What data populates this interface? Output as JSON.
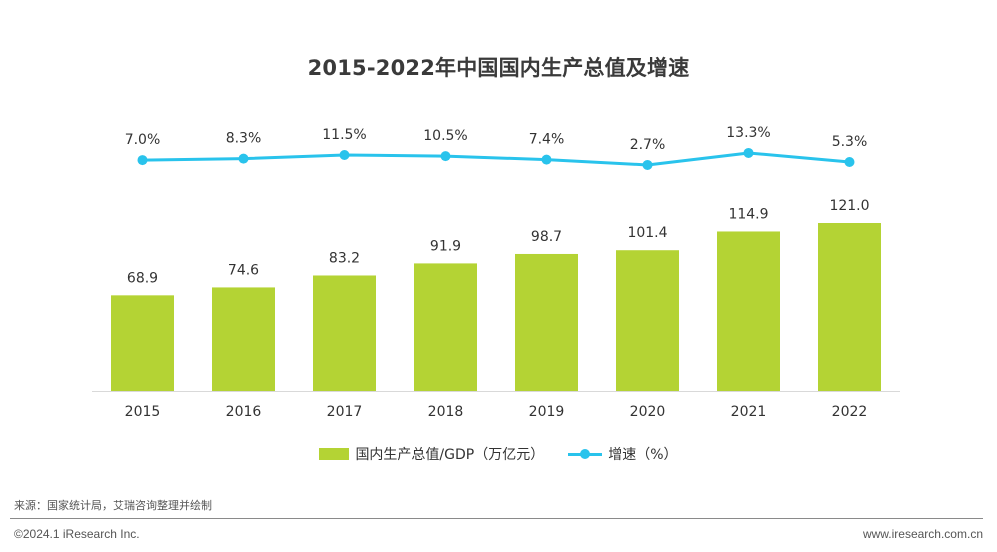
{
  "chart_data": {
    "type": "bar",
    "title": "2015-2022年中国国内生产总值及增速",
    "categories": [
      "2015",
      "2016",
      "2017",
      "2018",
      "2019",
      "2020",
      "2021",
      "2022"
    ],
    "series": [
      {
        "name": "国内生产总值/GDP（万亿元）",
        "type": "bar",
        "values": [
          68.9,
          74.6,
          83.2,
          91.9,
          98.7,
          101.4,
          114.9,
          121.0
        ],
        "labels": [
          "68.9",
          "74.6",
          "83.2",
          "91.9",
          "98.7",
          "101.4",
          "114.9",
          "121.0"
        ],
        "color": "#b4d334"
      },
      {
        "name": "增速（%）",
        "type": "line",
        "values": [
          7.0,
          8.3,
          11.5,
          10.5,
          7.4,
          2.7,
          13.3,
          5.3
        ],
        "labels": [
          "7.0%",
          "8.3%",
          "11.5%",
          "10.5%",
          "7.4%",
          "2.7%",
          "13.3%",
          "5.3%"
        ],
        "color": "#29c3ec"
      }
    ],
    "legend_position": "bottom",
    "grid": false
  },
  "legend": {
    "bar_label": "国内生产总值/GDP（万亿元）",
    "line_label": "增速（%）"
  },
  "source": "来源：国家统计局，艾瑞咨询整理并绘制",
  "footer": {
    "copyright": "©2024.1 iResearch Inc.",
    "website": "www.iresearch.com.cn"
  }
}
